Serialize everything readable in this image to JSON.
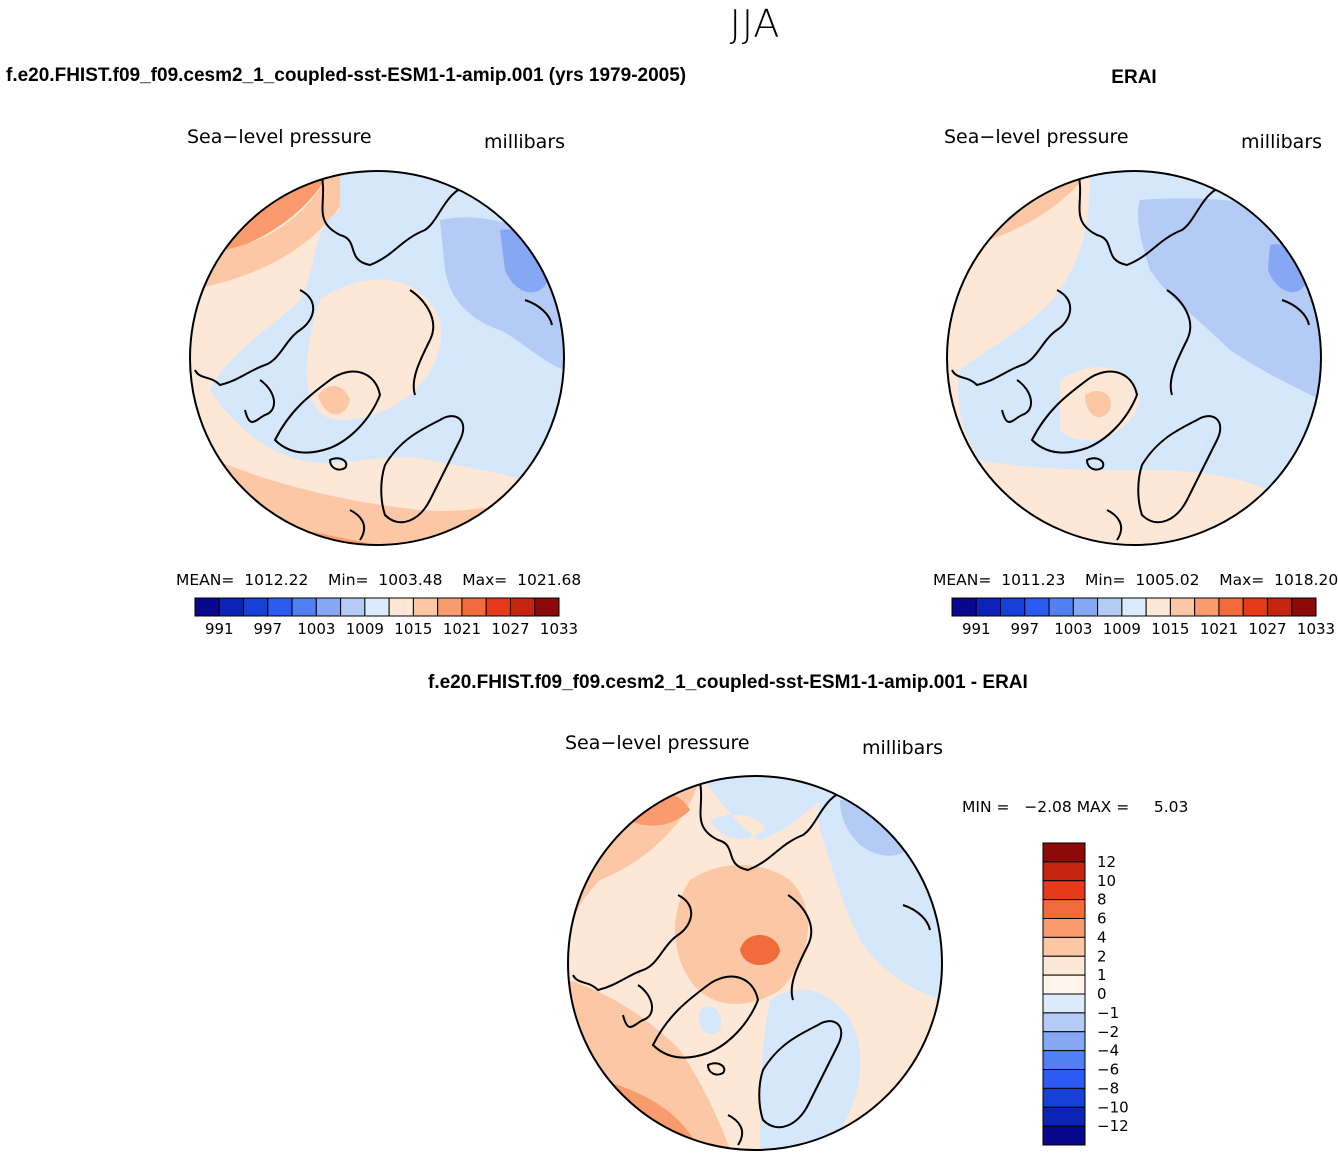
{
  "figure_title": "JJA",
  "chart_data": [
    {
      "type": "polar-contour-map",
      "panel": "model",
      "title": "f.e20.FHIST.f09_f09.cesm2_1_coupled-sst-ESM1-1-amip.001 (yrs 1979-2005)",
      "left_label": "Sea−level pressure",
      "right_label": "millibars",
      "stats": {
        "mean_label": "MEAN=",
        "mean": "1012.22",
        "min_label": "Min=",
        "min": "1003.48",
        "max_label": "Max=",
        "max": "1021.68"
      },
      "colorbar": {
        "orientation": "horizontal",
        "levels": [
          991,
          994,
          997,
          1000,
          1003,
          1006,
          1009,
          1012,
          1015,
          1018,
          1021,
          1024,
          1027,
          1030,
          1033
        ],
        "tick_labels": [
          "991",
          "997",
          "1003",
          "1009",
          "1015",
          "1021",
          "1027",
          "1033"
        ],
        "colors": [
          "#08088c",
          "#0c23b8",
          "#1640d8",
          "#2c5af2",
          "#5180f2",
          "#86a8f4",
          "#b4cbf6",
          "#dcebfb",
          "#fde8d8",
          "#fcc7a5",
          "#f99b6c",
          "#f26b3c",
          "#e63a1a",
          "#c42410",
          "#8c0a0a"
        ]
      }
    },
    {
      "type": "polar-contour-map",
      "panel": "obs",
      "title": "ERAI",
      "left_label": "Sea−level pressure",
      "right_label": "millibars",
      "stats": {
        "mean_label": "MEAN=",
        "mean": "1011.23",
        "min_label": "Min=",
        "min": "1005.02",
        "max_label": "Max=",
        "max": "1018.20"
      },
      "colorbar": {
        "orientation": "horizontal",
        "levels": [
          991,
          994,
          997,
          1000,
          1003,
          1006,
          1009,
          1012,
          1015,
          1018,
          1021,
          1024,
          1027,
          1030,
          1033
        ],
        "tick_labels": [
          "991",
          "997",
          "1003",
          "1009",
          "1015",
          "1021",
          "1027",
          "1033"
        ],
        "colors": [
          "#08088c",
          "#0c23b8",
          "#1640d8",
          "#2c5af2",
          "#5180f2",
          "#86a8f4",
          "#b4cbf6",
          "#dcebfb",
          "#fde8d8",
          "#fcc7a5",
          "#f99b6c",
          "#f26b3c",
          "#e63a1a",
          "#c42410",
          "#8c0a0a"
        ]
      }
    },
    {
      "type": "polar-contour-map",
      "panel": "difference",
      "title": "f.e20.FHIST.f09_f09.cesm2_1_coupled-sst-ESM1-1-amip.001 - ERAI",
      "left_label": "Sea−level pressure",
      "right_label": "millibars",
      "stats": {
        "min_label": "MIN =",
        "min": "−2.08",
        "max_label": "MAX =",
        "max": "5.03"
      },
      "colorbar": {
        "orientation": "vertical",
        "tick_labels": [
          "12",
          "10",
          "8",
          "6",
          "4",
          "2",
          "1",
          "0",
          "−1",
          "−2",
          "−4",
          "−6",
          "−8",
          "−10",
          "−12"
        ],
        "colors": [
          "#8c0a0a",
          "#c42410",
          "#e63a1a",
          "#f26b3c",
          "#f99b6c",
          "#fcc7a5",
          "#fde8d8",
          "#fff4ec",
          "#dcebfb",
          "#b4cbf6",
          "#86a8f4",
          "#5180f2",
          "#2c5af2",
          "#1640d8",
          "#0c23b8",
          "#08088c"
        ]
      }
    }
  ],
  "colors": {
    "neg_light": "#d5e7fb",
    "neg_mid": "#b4cbf6",
    "neg_strong": "#86a8f4",
    "pos_light": "#fde8d8",
    "pos_mid": "#fcc7a5",
    "pos_strong": "#f99b6c",
    "pos_deep": "#f26b3c",
    "coast": "#000000"
  }
}
